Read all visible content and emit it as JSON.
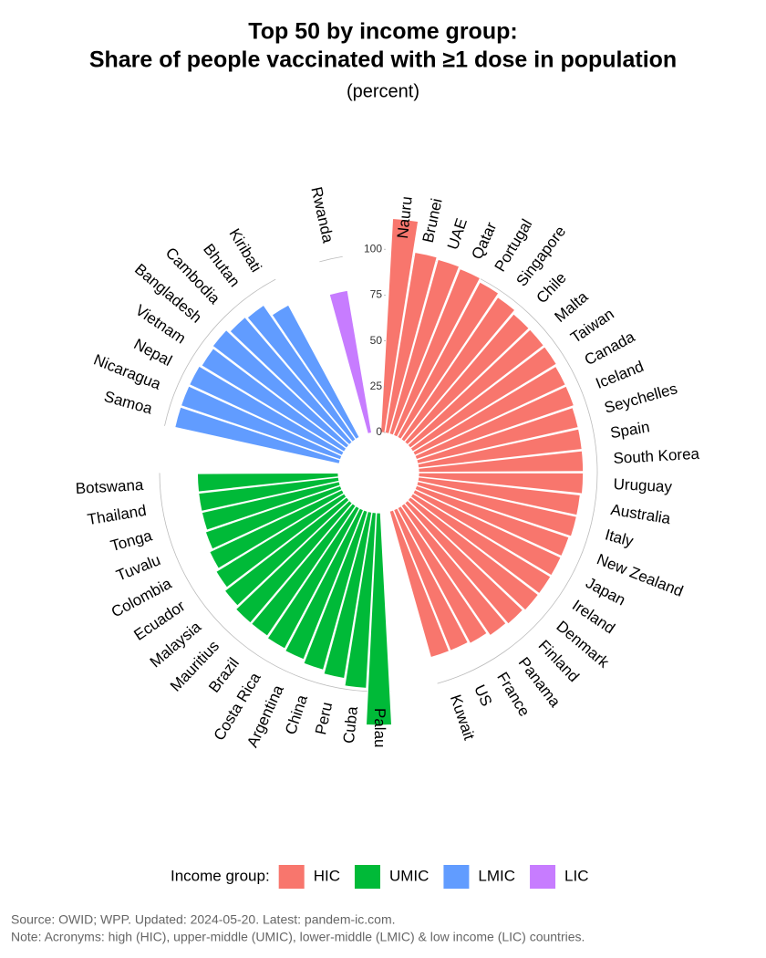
{
  "chart_data": {
    "type": "circular-bar",
    "title": "Top 50 by income group:",
    "subtitle": "Share of people vaccinated with  ≥1 dose in population",
    "unit_label": "(percent)",
    "legend_title": "Income group:",
    "source": "Source: OWID; WPP. Updated: 2024-05-20. Latest: pandem-ic.com.",
    "note": "Note: Acronyms: high (HIC), upper-middle (UMIC), lower-middle (LMIC) & low income (LIC) countries.",
    "ylim": [
      0,
      120
    ],
    "yticks": [
      0,
      25,
      50,
      75,
      100
    ],
    "series": [
      {
        "name": "HIC",
        "color": "#f8766d",
        "categories": [
          "Nauru",
          "Brunei",
          "UAE",
          "Qatar",
          "Portugal",
          "Singapore",
          "Chile",
          "Malta",
          "Taiwan",
          "Canada",
          "Iceland",
          "Seychelles",
          "Spain",
          "South Korea",
          "Uruguay",
          "Australia",
          "Italy",
          "New Zealand",
          "Japan",
          "Ireland",
          "Denmark",
          "Finland",
          "Panama",
          "France",
          "US",
          "Kuwait"
        ],
        "values": [
          117,
          100,
          99,
          98,
          96,
          94,
          92,
          92,
          92,
          91,
          91,
          90,
          90,
          90,
          90,
          89,
          89,
          88,
          88,
          88,
          88,
          87,
          86,
          84,
          83,
          83
        ]
      },
      {
        "name": "UMIC",
        "color": "#00ba38",
        "categories": [
          "Palau",
          "Cuba",
          "Peru",
          "China",
          "Argentina",
          "Costa Rica",
          "Brazil",
          "Mauritius",
          "Malaysia",
          "Ecuador",
          "Colombia",
          "Tuvalu",
          "Tonga",
          "Thailand",
          "Botswana"
        ],
        "values": [
          116,
          96,
          92,
          90,
          88,
          87,
          86,
          86,
          84,
          82,
          80,
          78,
          77,
          77,
          77
        ]
      },
      {
        "name": "LMIC",
        "color": "#619cff",
        "categories": [
          "Samoa",
          "Nicaragua",
          "Nepal",
          "Vietnam",
          "Bangladesh",
          "Cambodia",
          "Bhutan",
          "Kiribati"
        ],
        "values": [
          92,
          92,
          92,
          91,
          92,
          90,
          89,
          82
        ]
      },
      {
        "name": "LIC",
        "color": "#c77cff",
        "categories": [
          "Rwanda"
        ],
        "values": [
          79
        ]
      }
    ]
  }
}
